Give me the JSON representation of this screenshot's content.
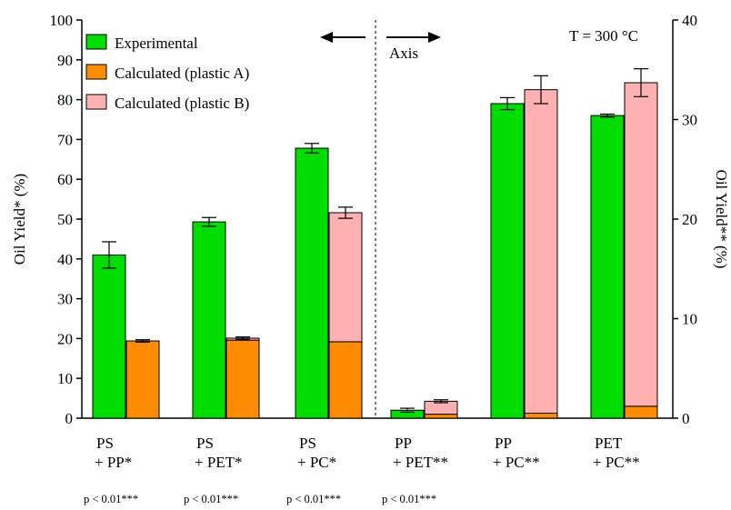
{
  "chart_data": {
    "type": "bar",
    "stacked_calculated": true,
    "annotation_temp": "T = 300 °C",
    "annotation_axis": "Axis",
    "left_axis": {
      "label": "Oil Yield* (%)",
      "min": 0,
      "max": 100,
      "ticks": [
        "0",
        "10",
        "20",
        "30",
        "40",
        "50",
        "60",
        "70",
        "80",
        "90",
        "100"
      ],
      "tick_values": [
        0,
        10,
        20,
        30,
        40,
        50,
        60,
        70,
        80,
        90,
        100
      ]
    },
    "right_axis": {
      "label": "Oil Yield** (%)",
      "min": 0,
      "max": 40,
      "ticks": [
        "0",
        "10",
        "20",
        "30",
        "40"
      ],
      "tick_values": [
        0,
        10,
        20,
        30,
        40
      ]
    },
    "legend": [
      {
        "name": "Experimental",
        "color": "#00dd00"
      },
      {
        "name": "Calculated (plastic A)",
        "color": "#ff8c00"
      },
      {
        "name": "Calculated (plastic B)",
        "color": "#ffb0b0"
      }
    ],
    "categories": [
      {
        "line1": "PS",
        "line2": "+ PP*",
        "pvalue": "p < 0.01***",
        "axis": "left",
        "experimental": 41.0,
        "exp_err": 3.3,
        "calc_a": 19.4,
        "calc_b": 0.0,
        "calc_err": 0.3
      },
      {
        "line1": "PS",
        "line2": "+ PET*",
        "pvalue": "p < 0.01***",
        "axis": "left",
        "experimental": 49.3,
        "exp_err": 1.1,
        "calc_a": 19.6,
        "calc_b": 0.5,
        "calc_err": 0.3
      },
      {
        "line1": "PS",
        "line2": "+ PC*",
        "pvalue": "p < 0.01***",
        "axis": "left",
        "experimental": 67.8,
        "exp_err": 1.2,
        "calc_a": 19.2,
        "calc_b": 32.4,
        "calc_err": 1.4
      },
      {
        "line1": "PP",
        "line2": "+ PET**",
        "pvalue": "p < 0.01***",
        "axis": "right",
        "experimental": 0.8,
        "exp_err": 0.2,
        "calc_a": 0.4,
        "calc_b": 1.3,
        "calc_err": 0.15
      },
      {
        "line1": "PP",
        "line2": "+ PC**",
        "pvalue": "",
        "axis": "right",
        "experimental": 31.6,
        "exp_err": 0.6,
        "calc_a": 0.5,
        "calc_b": 32.5,
        "calc_err": 1.4
      },
      {
        "line1": "PET",
        "line2": "+ PC**",
        "pvalue": "",
        "axis": "right",
        "experimental": 30.4,
        "exp_err": 0.15,
        "calc_a": 1.2,
        "calc_b": 32.5,
        "calc_err": 1.4
      }
    ]
  }
}
